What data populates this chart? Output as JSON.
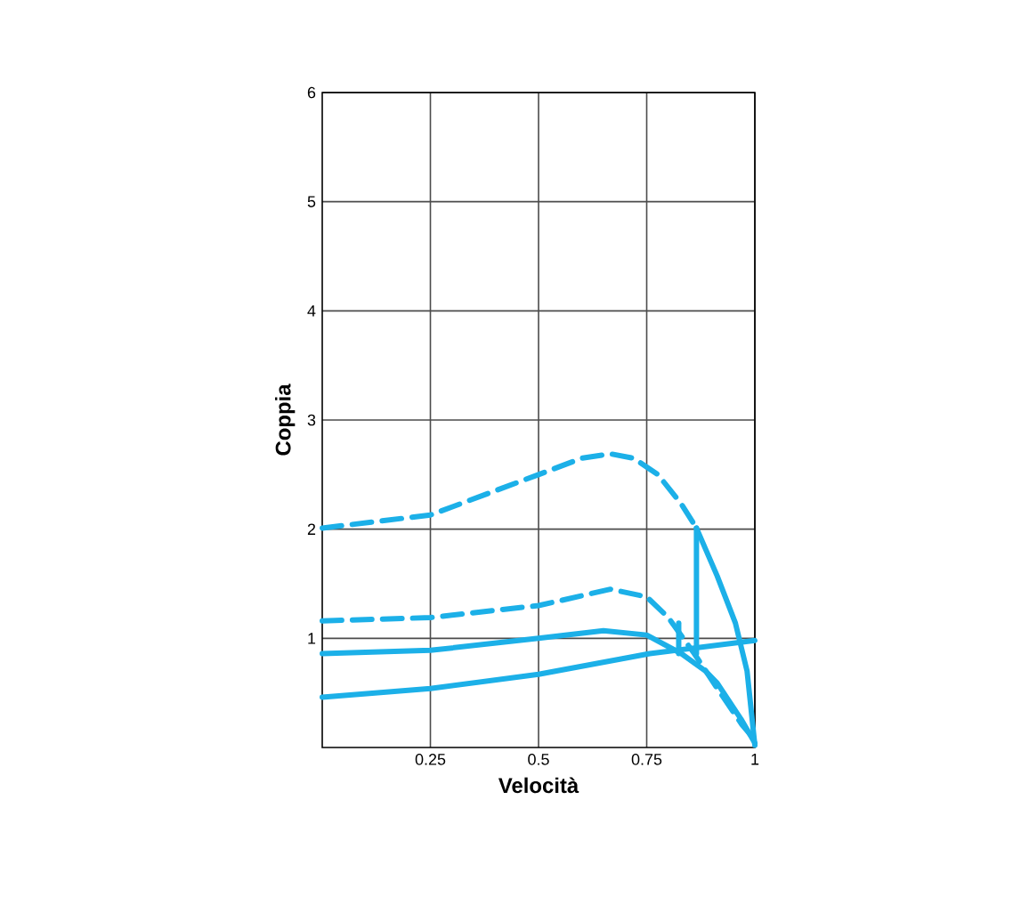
{
  "chart_data": {
    "type": "line",
    "xlabel": "Velocità",
    "ylabel": "Coppia",
    "xlim": [
      0,
      1
    ],
    "ylim": [
      0,
      6
    ],
    "xticks": [
      0.25,
      0.5,
      0.75,
      1
    ],
    "yticks": [
      1,
      2,
      3,
      4,
      5,
      6
    ],
    "grid": true,
    "marker": "none",
    "series": [
      {
        "color": "#1cb0e8",
        "line_style": "dashed",
        "x": [
          0,
          0.25,
          0.5,
          0.6,
          0.666,
          0.72,
          0.776,
          0.83,
          0.865
        ],
        "values": [
          2.01,
          2.13,
          2.5,
          2.65,
          2.69,
          2.65,
          2.5,
          2.23,
          2.01
        ]
      },
      {
        "color": "#1cb0e8",
        "line_style": "solid",
        "x": [
          0.865,
          0.913,
          0.955,
          0.982,
          1.0
        ],
        "values": [
          2.01,
          1.57,
          1.14,
          0.7,
          0.02
        ]
      },
      {
        "color": "#1cb0e8",
        "line_style": "solid",
        "x": [
          0.865,
          0.865
        ],
        "values": [
          2.01,
          0.86
        ]
      },
      {
        "color": "#1cb0e8",
        "line_style": "dashed",
        "x": [
          0,
          0.25,
          0.5,
          0.666,
          0.75,
          0.8,
          0.86,
          0.91,
          0.97,
          1.0
        ],
        "values": [
          1.16,
          1.19,
          1.3,
          1.45,
          1.38,
          1.19,
          0.86,
          0.56,
          0.21,
          0.07
        ]
      },
      {
        "color": "#1cb0e8",
        "line_style": "solid",
        "x": [
          0,
          0.25,
          0.5,
          0.65,
          0.75,
          0.83,
          0.886,
          0.913,
          0.968,
          1.0
        ],
        "values": [
          0.86,
          0.89,
          1.0,
          1.07,
          1.03,
          0.86,
          0.7,
          0.59,
          0.26,
          0.04
        ]
      },
      {
        "color": "#1cb0e8",
        "line_style": "solid",
        "x": [
          0.824,
          0.824
        ],
        "values": [
          1.14,
          0.86
        ]
      },
      {
        "color": "#1cb0e8",
        "line_style": "solid",
        "x": [
          0,
          0.25,
          0.5,
          0.757,
          1.0
        ],
        "values": [
          0.46,
          0.54,
          0.67,
          0.86,
          0.98
        ]
      }
    ]
  }
}
